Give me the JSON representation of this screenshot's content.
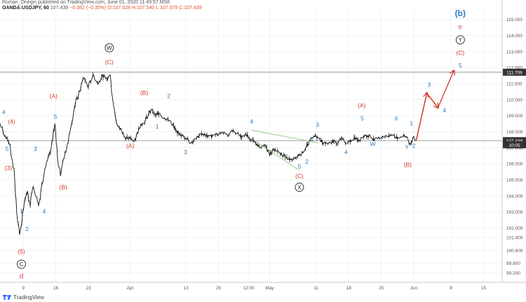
{
  "header": {
    "line1": "Roman_Onegin published on TradingView.com, June 01, 2020 11:49:57 MSK",
    "symbol": "OANDA:USDJPY, 60",
    "last": "107.439",
    "change": "−0.382 (−0.35%)",
    "ohlc": "O:107.528 H:107.540 L:107.379 C:107.439"
  },
  "brand": {
    "name": "TradingView",
    "icon": "tradingview-logo-icon"
  },
  "colors": {
    "red": "#d03a2a",
    "blue": "#2c7bbf",
    "pink": "#e0457b",
    "price_tag": "#333333",
    "green_line": "#8fc97a"
  },
  "chart_data": {
    "type": "line",
    "title": "",
    "xlabel": "",
    "ylabel": "",
    "ylim": [
      98.6,
      115.6
    ],
    "y_ticks": [
      "115.000",
      "114.000",
      "113.000",
      "112.000",
      "111.000",
      "110.000",
      "109.000",
      "108.000",
      "107.000",
      "106.000",
      "105.000",
      "104.000",
      "103.000",
      "102.000",
      "101.400",
      "100.600",
      "99.800",
      "99.200"
    ],
    "y_tick_values": [
      115.0,
      114.0,
      113.0,
      112.0,
      111.0,
      110.0,
      109.0,
      108.0,
      107.0,
      106.0,
      105.0,
      104.0,
      103.0,
      102.0,
      101.4,
      100.6,
      99.8,
      99.2
    ],
    "x_ticks": [
      "9",
      "16",
      "23",
      "Apr",
      "13",
      "20",
      "12:00",
      "May",
      "11",
      "18",
      "25",
      "Jun",
      "8",
      "15"
    ],
    "x_tick_days": [
      9,
      16,
      23,
      32,
      44,
      51,
      57.5,
      62,
      72,
      79,
      86,
      93,
      101,
      108
    ],
    "x_range_days": [
      4,
      112
    ],
    "price_tags": [
      {
        "label": "111.709",
        "value": 111.709
      },
      {
        "label": "107.439",
        "value": 107.439
      },
      {
        "label": "10:05",
        "value": 107.18
      }
    ],
    "series": [
      {
        "points": [
          [
            4,
            108.5
          ],
          [
            5,
            107.8
          ],
          [
            6,
            107.3
          ],
          [
            7,
            105.5
          ],
          [
            7.6,
            103.0
          ],
          [
            8.2,
            101.6
          ],
          [
            8.7,
            102.4
          ],
          [
            9.2,
            103.6
          ],
          [
            9.8,
            104.3
          ],
          [
            10.5,
            103.5
          ],
          [
            11,
            104.6
          ],
          [
            11.8,
            104.0
          ],
          [
            12.3,
            103.4
          ],
          [
            13,
            104.6
          ],
          [
            13.5,
            105.5
          ],
          [
            14.2,
            106.2
          ],
          [
            15,
            106.8
          ],
          [
            15.8,
            108.5
          ],
          [
            16.4,
            106.2
          ],
          [
            17,
            105.4
          ],
          [
            18,
            106.6
          ],
          [
            19,
            107.9
          ],
          [
            20,
            109.6
          ],
          [
            21,
            110.4
          ],
          [
            22,
            111.4
          ],
          [
            23,
            110.8
          ],
          [
            24,
            111.6
          ],
          [
            25,
            111.0
          ],
          [
            26,
            111.5
          ],
          [
            27,
            111.3
          ],
          [
            27.7,
            111.7
          ],
          [
            28,
            110.6
          ],
          [
            28.6,
            109.3
          ],
          [
            29.2,
            108.4
          ],
          [
            30,
            108.2
          ],
          [
            31,
            107.6
          ],
          [
            32,
            107.6
          ],
          [
            33,
            107.4
          ],
          [
            34,
            108.3
          ],
          [
            35,
            108.6
          ],
          [
            36,
            109.1
          ],
          [
            36.7,
            109.4
          ],
          [
            37.5,
            109.0
          ],
          [
            38.3,
            109.2
          ],
          [
            39,
            108.9
          ],
          [
            40,
            108.8
          ],
          [
            41,
            108.5
          ],
          [
            42,
            108.0
          ],
          [
            43,
            107.8
          ],
          [
            44,
            107.6
          ],
          [
            45,
            107.3
          ],
          [
            46,
            107.5
          ],
          [
            47,
            107.8
          ],
          [
            48,
            107.8
          ],
          [
            49,
            107.7
          ],
          [
            50,
            107.8
          ],
          [
            51,
            107.8
          ],
          [
            52,
            108.0
          ],
          [
            53,
            107.8
          ],
          [
            54,
            108.0
          ],
          [
            55,
            107.9
          ],
          [
            56,
            107.7
          ],
          [
            57,
            107.8
          ],
          [
            58,
            107.5
          ],
          [
            59,
            107.3
          ],
          [
            60,
            107.0
          ],
          [
            61,
            107.1
          ],
          [
            62,
            106.6
          ],
          [
            63,
            106.9
          ],
          [
            64,
            106.7
          ],
          [
            65,
            106.5
          ],
          [
            66,
            106.3
          ],
          [
            67,
            106.2
          ],
          [
            68,
            106.5
          ],
          [
            68.8,
            106.6
          ],
          [
            69.5,
            106.9
          ],
          [
            70.5,
            107.3
          ],
          [
            71.5,
            107.8
          ],
          [
            72.5,
            107.6
          ],
          [
            73.5,
            107.3
          ],
          [
            74.5,
            107.2
          ],
          [
            75.5,
            107.4
          ],
          [
            76.5,
            107.3
          ],
          [
            77.5,
            107.6
          ],
          [
            78.5,
            107.3
          ],
          [
            79.5,
            107.5
          ],
          [
            80.5,
            107.6
          ],
          [
            81.5,
            107.5
          ],
          [
            82.5,
            107.8
          ],
          [
            83.5,
            107.7
          ],
          [
            84.5,
            107.5
          ],
          [
            85.5,
            107.6
          ],
          [
            86.5,
            107.7
          ],
          [
            87.5,
            107.7
          ],
          [
            88.5,
            107.8
          ],
          [
            89.5,
            107.6
          ],
          [
            90.5,
            107.7
          ],
          [
            91.5,
            107.7
          ],
          [
            92.3,
            107.1
          ],
          [
            92.9,
            107.7
          ],
          [
            93.5,
            107.44
          ]
        ]
      }
    ],
    "projection": [
      [
        93.5,
        107.44
      ],
      [
        95.8,
        110.4
      ],
      [
        98.2,
        109.5
      ],
      [
        101.6,
        111.8
      ]
    ],
    "green_lines": [
      [
        [
          58,
          108.1
        ],
        [
          72.5,
          107.3
        ]
      ],
      [
        [
          58,
          107.6
        ],
        [
          68.3,
          105.6
        ]
      ]
    ],
    "annotations": [
      {
        "text": "W",
        "circled": true,
        "color": "#222222",
        "x": 27.5,
        "y": 113.1
      },
      {
        "text": "(C)",
        "color": "red",
        "x": 27.5,
        "y": 112.2
      },
      {
        "text": "4",
        "color": "blue",
        "x": 4.8,
        "y": 109.1
      },
      {
        "text": "(4)",
        "color": "red",
        "x": 6.5,
        "y": 108.5
      },
      {
        "text": "5",
        "color": "blue",
        "x": 5.5,
        "y": 106.8
      },
      {
        "text": "(3)",
        "color": "red",
        "x": 5.8,
        "y": 105.6
      },
      {
        "text": "3",
        "color": "blue",
        "x": 11.6,
        "y": 106.8
      },
      {
        "text": "(A)",
        "color": "red",
        "x": 15.5,
        "y": 110.1
      },
      {
        "text": "5",
        "color": "blue",
        "x": 15.9,
        "y": 108.8
      },
      {
        "text": "(B)",
        "color": "red",
        "x": 17.6,
        "y": 104.4
      },
      {
        "text": "4",
        "color": "blue",
        "x": 13.5,
        "y": 102.9
      },
      {
        "text": "1",
        "color": "blue",
        "x": 8.6,
        "y": 102.9
      },
      {
        "text": "2",
        "color": "blue",
        "x": 9.8,
        "y": 101.8
      },
      {
        "text": "(5)",
        "color": "red",
        "x": 8.6,
        "y": 100.4
      },
      {
        "text": "C",
        "circled": true,
        "color": "#222222",
        "x": 8.6,
        "y": 99.6
      },
      {
        "text": "d",
        "color": "pink",
        "x": 8.6,
        "y": 98.85
      },
      {
        "text": "(A)",
        "color": "red",
        "x": 32.0,
        "y": 107.0
      },
      {
        "text": "(B)",
        "color": "red",
        "x": 35.0,
        "y": 110.3
      },
      {
        "text": "2",
        "color": "blue",
        "x": 40.3,
        "y": 110.1
      },
      {
        "text": "1",
        "color": "blue",
        "x": 37.8,
        "y": 108.2
      },
      {
        "text": "3",
        "color": "blue",
        "x": 43.9,
        "y": 106.6
      },
      {
        "text": "4",
        "color": "blue",
        "x": 58.1,
        "y": 108.5
      },
      {
        "text": "1",
        "color": "blue",
        "x": 71.2,
        "y": 107.4
      },
      {
        "text": "5",
        "color": "blue",
        "x": 68.4,
        "y": 105.7
      },
      {
        "text": "(C)",
        "color": "red",
        "x": 68.4,
        "y": 105.1
      },
      {
        "text": "X",
        "circled": true,
        "color": "#222222",
        "x": 68.4,
        "y": 104.4
      },
      {
        "text": "2",
        "color": "blue",
        "x": 70.0,
        "y": 106.0
      },
      {
        "text": "3",
        "color": "blue",
        "x": 72.3,
        "y": 108.3
      },
      {
        "text": "4",
        "color": "blue",
        "x": 78.4,
        "y": 106.6
      },
      {
        "text": "(A)",
        "color": "red",
        "x": 81.8,
        "y": 109.5
      },
      {
        "text": "5",
        "color": "blue",
        "x": 81.9,
        "y": 108.7
      },
      {
        "text": "W",
        "color": "blue",
        "x": 84.2,
        "y": 107.1
      },
      {
        "text": "X",
        "color": "blue",
        "x": 89.2,
        "y": 108.7
      },
      {
        "text": "1",
        "color": "blue",
        "x": 92.5,
        "y": 108.4
      },
      {
        "text": "2",
        "color": "blue",
        "x": 93.0,
        "y": 107.0
      },
      {
        "text": "Y",
        "color": "blue",
        "x": 91.5,
        "y": 106.9
      },
      {
        "text": "(B)",
        "color": "red",
        "x": 91.7,
        "y": 105.8
      },
      {
        "text": "3",
        "color": "blue",
        "x": 96.3,
        "y": 110.8
      },
      {
        "text": "4",
        "color": "blue",
        "x": 99.6,
        "y": 109.2
      },
      {
        "text": "5",
        "color": "blue",
        "x": 103.0,
        "y": 112.0
      },
      {
        "text": "(C)",
        "color": "red",
        "x": 103.0,
        "y": 112.8
      },
      {
        "text": "Y",
        "circled": true,
        "color": "#222222",
        "x": 103.0,
        "y": 113.6
      },
      {
        "text": "e",
        "color": "pink",
        "x": 103.0,
        "y": 114.4
      },
      {
        "text": "(b)",
        "color": "blue",
        "bold": true,
        "x": 103.0,
        "y": 115.2
      }
    ]
  }
}
